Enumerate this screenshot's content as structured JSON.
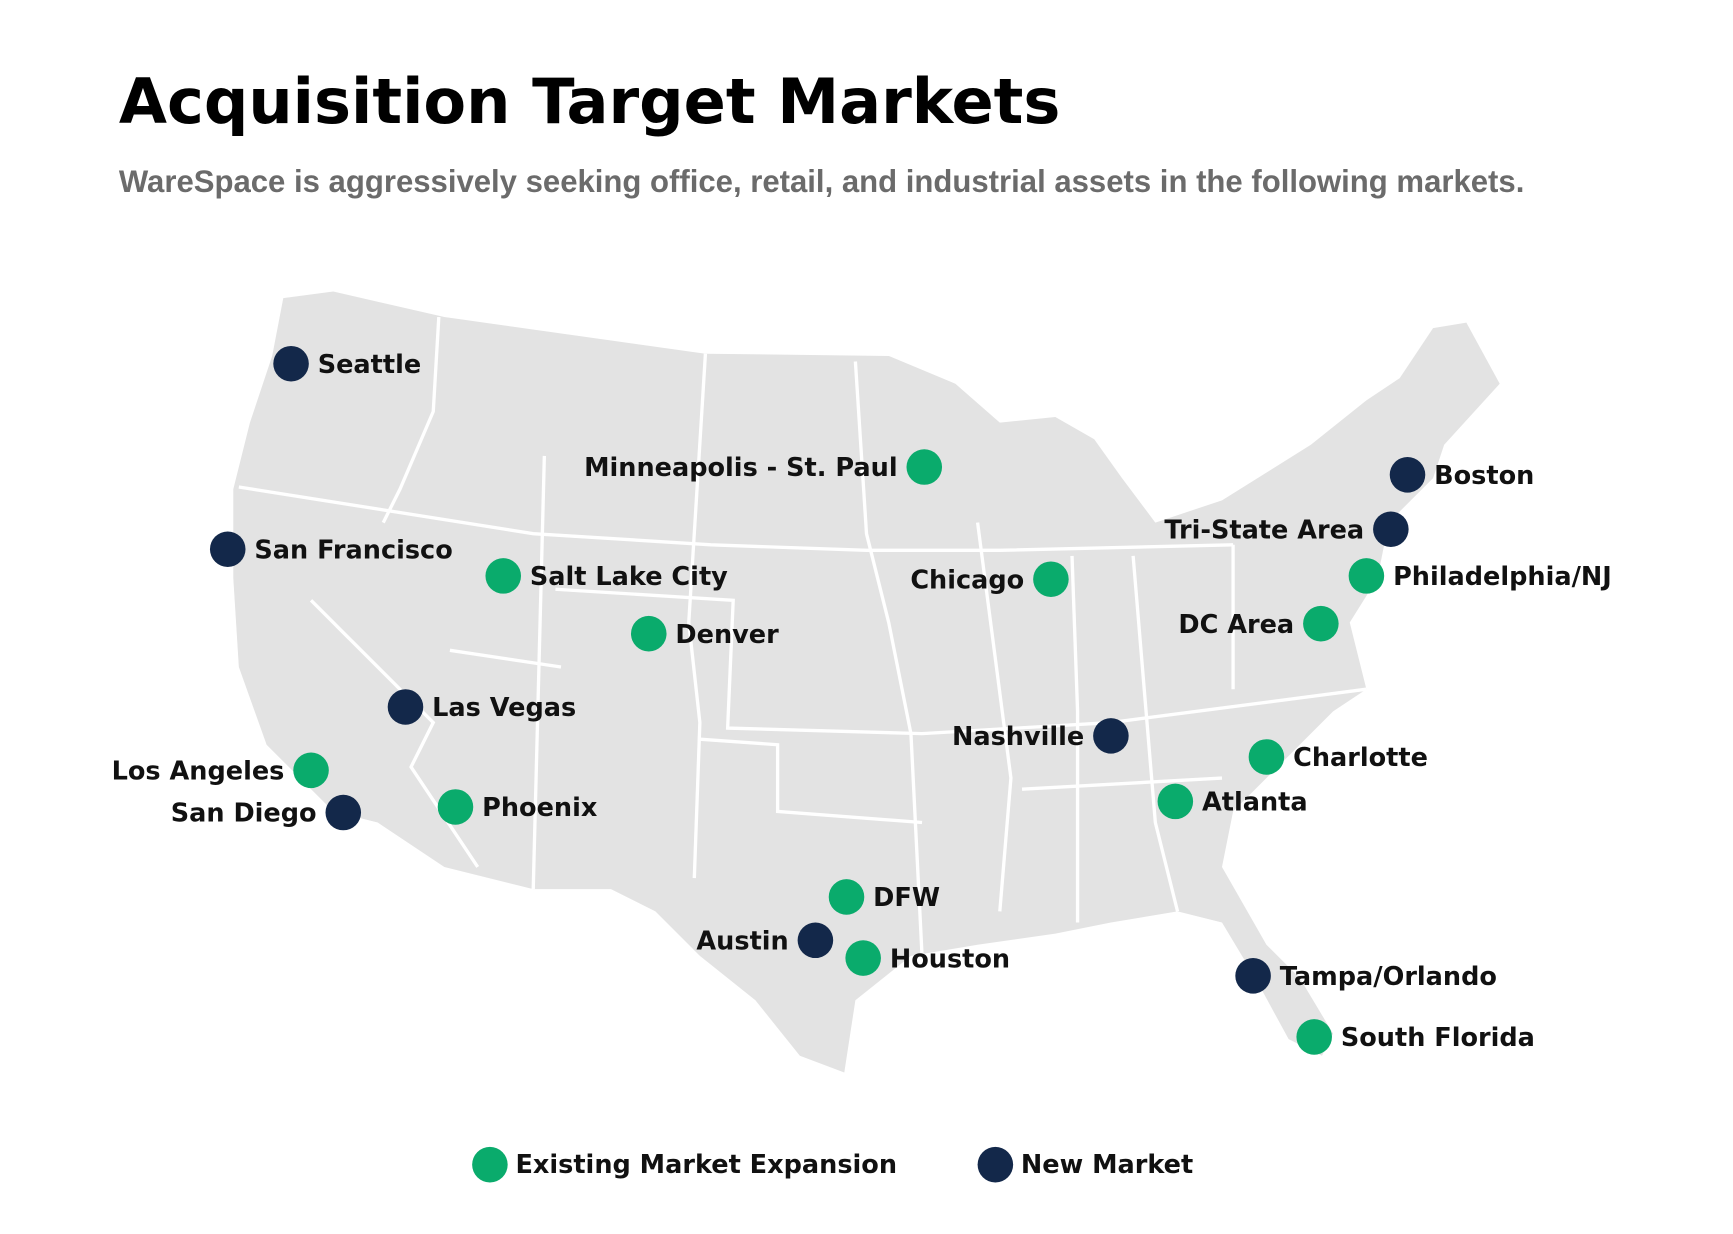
{
  "title": "Acquisition Target Markets",
  "subtitle": "WareSpace is aggressively seeking office, retail, and industrial assets in the following markets.",
  "groups": [
    {
      "label": "Existing Market Expansion",
      "color": "#0aab6c",
      "markets": [
        "Minneapolis - St. Paul",
        "Salt Lake City",
        "Denver",
        "Chicago",
        "Philadelphia/NJ",
        "DC Area",
        "Los Angeles",
        "Phoenix",
        "Charlotte",
        "Atlanta",
        "DFW",
        "Houston",
        "South Florida"
      ]
    },
    {
      "label": "New Market",
      "color": "#13284a",
      "markets": [
        "Seattle",
        "San Francisco",
        "Las Vegas",
        "San Diego",
        "Boston",
        "Tri-State Area",
        "Nashville",
        "Austin",
        "Tampa/Orlando"
      ]
    }
  ]
}
